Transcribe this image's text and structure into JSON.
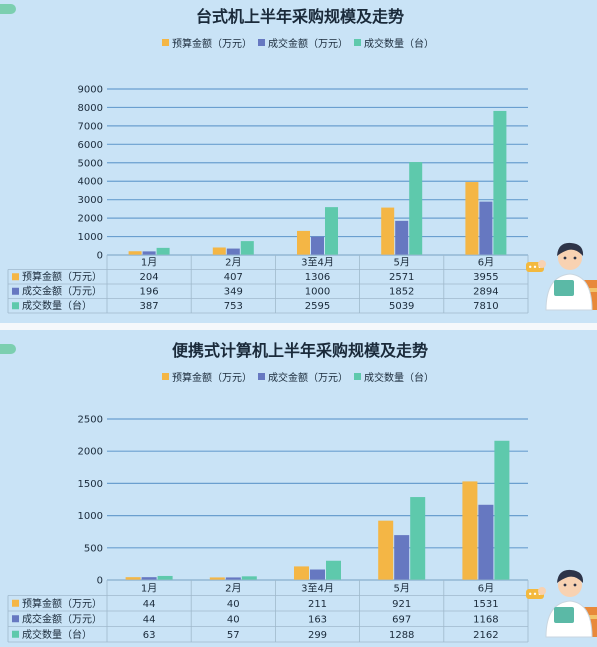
{
  "colors": {
    "budget": "#f4b645",
    "deal": "#6678c1",
    "qty": "#5ec9ac",
    "grid": "#6a9fcf",
    "background": "#c9e3f6"
  },
  "chart_data": [
    {
      "type": "bar",
      "title": "台式机上半年采购规模及走势",
      "categories": [
        "1月",
        "2月",
        "3至4月",
        "5月",
        "6月"
      ],
      "series": [
        {
          "name": "预算金额（万元）",
          "legend": "预算金额（万元）",
          "values": [
            204,
            407,
            1306,
            2571,
            3955
          ]
        },
        {
          "name": "成交金额（万元）",
          "legend": "成交金额（万元）",
          "values": [
            196,
            349,
            1000,
            1852,
            2894
          ]
        },
        {
          "name": "成交数量（台）",
          "legend": "成交数量（台）",
          "values": [
            387,
            753,
            2595,
            5039,
            7810
          ]
        }
      ],
      "yticks": [
        0,
        1000,
        2000,
        3000,
        4000,
        5000,
        6000,
        7000,
        8000,
        9000
      ],
      "ylim": [
        0,
        9000
      ],
      "grid": true,
      "legend_position": "top"
    },
    {
      "type": "bar",
      "title": "便携式计算机上半年采购规模及走势",
      "categories": [
        "1月",
        "2月",
        "3至4月",
        "5月",
        "6月"
      ],
      "series": [
        {
          "name": "预算金额（万元）",
          "legend": "预算金额（万元）",
          "values": [
            44,
            40,
            211,
            921,
            1531
          ]
        },
        {
          "name": "成交金额（万元）",
          "legend": "成交金额（万元）",
          "values": [
            44,
            40,
            163,
            697,
            1168
          ]
        },
        {
          "name": "成交数量（台）",
          "legend": "成交数量（台）",
          "values": [
            63,
            57,
            299,
            1288,
            2162
          ]
        }
      ],
      "yticks": [
        0,
        500,
        1000,
        1500,
        2000,
        2500
      ],
      "ylim": [
        0,
        2500
      ],
      "grid": true,
      "legend_position": "top"
    }
  ]
}
